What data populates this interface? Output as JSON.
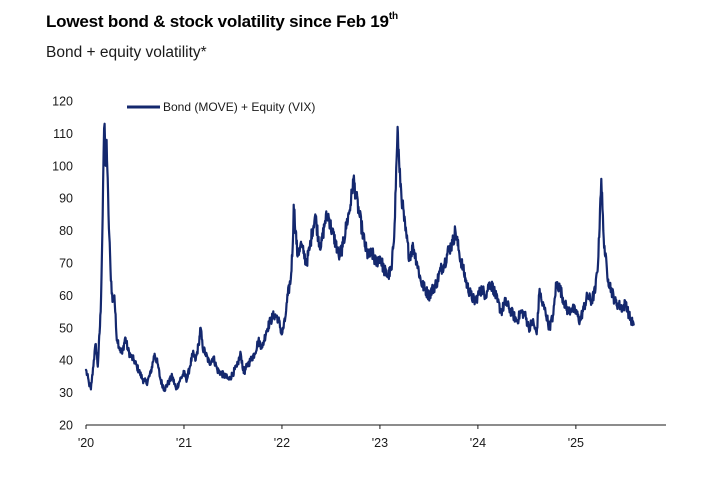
{
  "header": {
    "title": "Lowest bond & stock volatility since Feb 19",
    "title_sup": "th",
    "subtitle": "Bond + equity volatility*"
  },
  "colors": {
    "line": "#14286e",
    "axis": "#1a1a1a"
  },
  "chart_data": {
    "type": "line",
    "title": "Lowest bond & stock volatility since Feb 19th",
    "subtitle": "Bond + equity volatility*",
    "xlabel": "",
    "ylabel": "",
    "ylim": [
      20,
      120
    ],
    "yticks": [
      20,
      30,
      40,
      50,
      60,
      70,
      80,
      90,
      100,
      110,
      120
    ],
    "xlim": [
      2020.0,
      2025.92
    ],
    "xticks": [
      {
        "value": 2020,
        "label": "'20"
      },
      {
        "value": 2021,
        "label": "'21"
      },
      {
        "value": 2022,
        "label": "'22"
      },
      {
        "value": 2023,
        "label": "'23"
      },
      {
        "value": 2024,
        "label": "'24"
      },
      {
        "value": 2025,
        "label": "'25"
      }
    ],
    "grid": false,
    "legend_position": "top-left",
    "series": [
      {
        "name": "Bond (MOVE) + Equity (VIX)",
        "points": [
          [
            2020.0,
            37
          ],
          [
            2020.03,
            33
          ],
          [
            2020.05,
            31
          ],
          [
            2020.08,
            40
          ],
          [
            2020.1,
            45
          ],
          [
            2020.12,
            38
          ],
          [
            2020.15,
            55
          ],
          [
            2020.17,
            85
          ],
          [
            2020.18,
            104
          ],
          [
            2020.19,
            113
          ],
          [
            2020.2,
            100
          ],
          [
            2020.21,
            108
          ],
          [
            2020.23,
            85
          ],
          [
            2020.25,
            68
          ],
          [
            2020.27,
            58
          ],
          [
            2020.29,
            60
          ],
          [
            2020.31,
            48
          ],
          [
            2020.34,
            44
          ],
          [
            2020.37,
            42
          ],
          [
            2020.4,
            47
          ],
          [
            2020.43,
            43
          ],
          [
            2020.46,
            41
          ],
          [
            2020.49,
            40
          ],
          [
            2020.52,
            38
          ],
          [
            2020.55,
            36
          ],
          [
            2020.58,
            34
          ],
          [
            2020.62,
            33
          ],
          [
            2020.66,
            36
          ],
          [
            2020.7,
            42
          ],
          [
            2020.73,
            39
          ],
          [
            2020.76,
            34
          ],
          [
            2020.8,
            31
          ],
          [
            2020.84,
            33
          ],
          [
            2020.88,
            35
          ],
          [
            2020.92,
            31
          ],
          [
            2020.96,
            34
          ],
          [
            2021.0,
            36
          ],
          [
            2021.03,
            34
          ],
          [
            2021.06,
            38
          ],
          [
            2021.09,
            42
          ],
          [
            2021.12,
            40
          ],
          [
            2021.15,
            45
          ],
          [
            2021.17,
            50
          ],
          [
            2021.19,
            44
          ],
          [
            2021.22,
            42
          ],
          [
            2021.26,
            39
          ],
          [
            2021.3,
            41
          ],
          [
            2021.34,
            37
          ],
          [
            2021.38,
            36
          ],
          [
            2021.42,
            35
          ],
          [
            2021.46,
            34
          ],
          [
            2021.5,
            36
          ],
          [
            2021.54,
            38
          ],
          [
            2021.58,
            42
          ],
          [
            2021.61,
            36
          ],
          [
            2021.64,
            38
          ],
          [
            2021.68,
            40
          ],
          [
            2021.72,
            42
          ],
          [
            2021.76,
            46
          ],
          [
            2021.8,
            44
          ],
          [
            2021.84,
            49
          ],
          [
            2021.88,
            52
          ],
          [
            2021.92,
            54
          ],
          [
            2021.96,
            53
          ],
          [
            2022.0,
            48
          ],
          [
            2022.03,
            52
          ],
          [
            2022.06,
            60
          ],
          [
            2022.09,
            65
          ],
          [
            2022.11,
            75
          ],
          [
            2022.12,
            88
          ],
          [
            2022.14,
            80
          ],
          [
            2022.16,
            72
          ],
          [
            2022.19,
            76
          ],
          [
            2022.22,
            73
          ],
          [
            2022.25,
            70
          ],
          [
            2022.28,
            74
          ],
          [
            2022.31,
            80
          ],
          [
            2022.34,
            85
          ],
          [
            2022.37,
            78
          ],
          [
            2022.4,
            75
          ],
          [
            2022.44,
            83
          ],
          [
            2022.47,
            85
          ],
          [
            2022.51,
            80
          ],
          [
            2022.55,
            76
          ],
          [
            2022.58,
            72
          ],
          [
            2022.62,
            75
          ],
          [
            2022.66,
            82
          ],
          [
            2022.7,
            88
          ],
          [
            2022.73,
            96
          ],
          [
            2022.76,
            90
          ],
          [
            2022.79,
            85
          ],
          [
            2022.82,
            80
          ],
          [
            2022.85,
            75
          ],
          [
            2022.88,
            72
          ],
          [
            2022.92,
            73
          ],
          [
            2022.96,
            70
          ],
          [
            2023.0,
            72
          ],
          [
            2023.04,
            68
          ],
          [
            2023.08,
            66
          ],
          [
            2023.12,
            68
          ],
          [
            2023.15,
            82
          ],
          [
            2023.17,
            102
          ],
          [
            2023.18,
            112
          ],
          [
            2023.2,
            98
          ],
          [
            2023.23,
            88
          ],
          [
            2023.26,
            80
          ],
          [
            2023.3,
            72
          ],
          [
            2023.34,
            75
          ],
          [
            2023.38,
            70
          ],
          [
            2023.42,
            64
          ],
          [
            2023.46,
            62
          ],
          [
            2023.5,
            60
          ],
          [
            2023.54,
            62
          ],
          [
            2023.58,
            64
          ],
          [
            2023.62,
            68
          ],
          [
            2023.66,
            70
          ],
          [
            2023.7,
            74
          ],
          [
            2023.74,
            76
          ],
          [
            2023.77,
            80
          ],
          [
            2023.81,
            73
          ],
          [
            2023.85,
            68
          ],
          [
            2023.89,
            63
          ],
          [
            2023.93,
            60
          ],
          [
            2023.97,
            58
          ],
          [
            2024.0,
            60
          ],
          [
            2024.04,
            62
          ],
          [
            2024.08,
            60
          ],
          [
            2024.12,
            64
          ],
          [
            2024.16,
            62
          ],
          [
            2024.2,
            58
          ],
          [
            2024.24,
            55
          ],
          [
            2024.28,
            58
          ],
          [
            2024.32,
            56
          ],
          [
            2024.36,
            54
          ],
          [
            2024.4,
            52
          ],
          [
            2024.44,
            55
          ],
          [
            2024.48,
            54
          ],
          [
            2024.52,
            50
          ],
          [
            2024.56,
            52
          ],
          [
            2024.6,
            48
          ],
          [
            2024.63,
            62
          ],
          [
            2024.65,
            58
          ],
          [
            2024.69,
            55
          ],
          [
            2024.73,
            50
          ],
          [
            2024.77,
            54
          ],
          [
            2024.8,
            64
          ],
          [
            2024.84,
            62
          ],
          [
            2024.88,
            58
          ],
          [
            2024.92,
            55
          ],
          [
            2024.96,
            56
          ],
          [
            2025.0,
            55
          ],
          [
            2025.04,
            52
          ],
          [
            2025.08,
            56
          ],
          [
            2025.12,
            60
          ],
          [
            2025.16,
            58
          ],
          [
            2025.2,
            62
          ],
          [
            2025.23,
            72
          ],
          [
            2025.25,
            90
          ],
          [
            2025.26,
            96
          ],
          [
            2025.28,
            80
          ],
          [
            2025.3,
            72
          ],
          [
            2025.33,
            65
          ],
          [
            2025.36,
            62
          ],
          [
            2025.4,
            58
          ],
          [
            2025.44,
            57
          ],
          [
            2025.48,
            56
          ],
          [
            2025.51,
            58
          ],
          [
            2025.54,
            54
          ],
          [
            2025.57,
            52
          ],
          [
            2025.59,
            51
          ]
        ]
      }
    ]
  }
}
